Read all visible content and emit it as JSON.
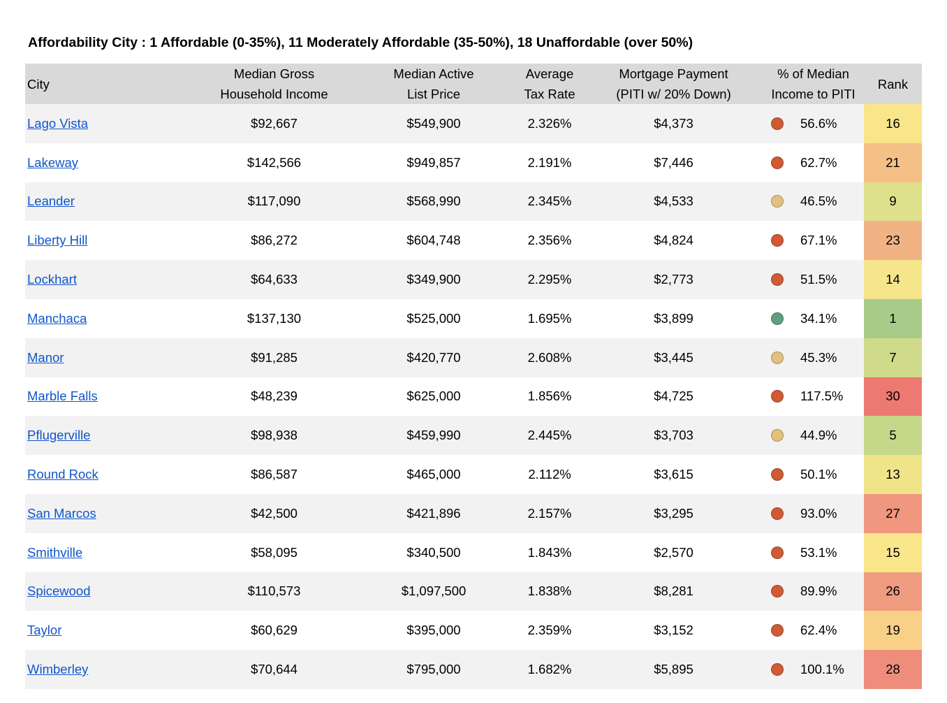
{
  "title": "Affordability City :  1 Affordable  (0-35%),  11 Moderately Affordable (35-50%), 18 Unaffordable (over 50%)",
  "colors": {
    "header_bg": "#d9d9d9",
    "stripe_bg": "#f2f2f2",
    "link": "#1155cc",
    "status": {
      "affordable": "#5f9e80",
      "moderate": "#e3c07e",
      "unaffordable": "#cf5a34"
    }
  },
  "table": {
    "headers": {
      "city": "City",
      "income_1": "Median Gross",
      "income_2": "Household Income",
      "price_1": "Median Active",
      "price_2": "List Price",
      "tax_1": "Average",
      "tax_2": "Tax Rate",
      "mortgage_1": "Mortgage Payment",
      "mortgage_2": "(PITI w/ 20% Down)",
      "pct_1": "% of Median",
      "pct_2": "Income to PITI",
      "rank": "Rank"
    },
    "rows": [
      {
        "city": "Lago Vista",
        "income": "$92,667",
        "price": "$549,900",
        "tax": "2.326%",
        "mortgage": "$4,373",
        "status": "unaffordable",
        "pct": "56.6%",
        "rank": "16",
        "rank_color": "#f9e58a"
      },
      {
        "city": "Lakeway",
        "income": "$142,566",
        "price": "$949,857",
        "tax": "2.191%",
        "mortgage": "$7,446",
        "status": "unaffordable",
        "pct": "62.7%",
        "rank": "21",
        "rank_color": "#f4c086"
      },
      {
        "city": "Leander",
        "income": "$117,090",
        "price": "$568,990",
        "tax": "2.345%",
        "mortgage": "$4,533",
        "status": "moderate",
        "pct": "46.5%",
        "rank": "9",
        "rank_color": "#dfe08b"
      },
      {
        "city": "Liberty Hill",
        "income": "$86,272",
        "price": "$604,748",
        "tax": "2.356%",
        "mortgage": "$4,824",
        "status": "unaffordable",
        "pct": "67.1%",
        "rank": "23",
        "rank_color": "#f2b384"
      },
      {
        "city": "Lockhart",
        "income": "$64,633",
        "price": "$349,900",
        "tax": "2.295%",
        "mortgage": "$2,773",
        "status": "unaffordable",
        "pct": "51.5%",
        "rank": "14",
        "rank_color": "#f5e68c"
      },
      {
        "city": "Manchaca",
        "income": "$137,130",
        "price": "$525,000",
        "tax": "1.695%",
        "mortgage": "$3,899",
        "status": "affordable",
        "pct": "34.1%",
        "rank": "1",
        "rank_color": "#a9cb89"
      },
      {
        "city": "Manor",
        "income": "$91,285",
        "price": "$420,770",
        "tax": "2.608%",
        "mortgage": "$3,445",
        "status": "moderate",
        "pct": "45.3%",
        "rank": "7",
        "rank_color": "#cfdb8b"
      },
      {
        "city": "Marble Falls",
        "income": "$48,239",
        "price": "$625,000",
        "tax": "1.856%",
        "mortgage": "$4,725",
        "status": "unaffordable",
        "pct": "117.5%",
        "rank": "30",
        "rank_color": "#ec7a72"
      },
      {
        "city": "Pflugerville",
        "income": "$98,938",
        "price": "$459,990",
        "tax": "2.445%",
        "mortgage": "$3,703",
        "status": "moderate",
        "pct": "44.9%",
        "rank": "5",
        "rank_color": "#c5d88a"
      },
      {
        "city": "Round Rock",
        "income": "$86,587",
        "price": "$465,000",
        "tax": "2.112%",
        "mortgage": "$3,615",
        "status": "unaffordable",
        "pct": "50.1%",
        "rank": "13",
        "rank_color": "#f0e48b"
      },
      {
        "city": "San Marcos",
        "income": "$42,500",
        "price": "$421,896",
        "tax": "2.157%",
        "mortgage": "$3,295",
        "status": "unaffordable",
        "pct": "93.0%",
        "rank": "27",
        "rank_color": "#f09780"
      },
      {
        "city": "Smithville",
        "income": "$58,095",
        "price": "$340,500",
        "tax": "1.843%",
        "mortgage": "$2,570",
        "status": "unaffordable",
        "pct": "53.1%",
        "rank": "15",
        "rank_color": "#f9e58a"
      },
      {
        "city": "Spicewood",
        "income": "$110,573",
        "price": "$1,097,500",
        "tax": "1.838%",
        "mortgage": "$8,281",
        "status": "unaffordable",
        "pct": "89.9%",
        "rank": "26",
        "rank_color": "#f09c80"
      },
      {
        "city": "Taylor",
        "income": "$60,629",
        "price": "$395,000",
        "tax": "2.359%",
        "mortgage": "$3,152",
        "status": "unaffordable",
        "pct": "62.4%",
        "rank": "19",
        "rank_color": "#f8d088"
      },
      {
        "city": "Wimberley",
        "income": "$70,644",
        "price": "$795,000",
        "tax": "1.682%",
        "mortgage": "$5,895",
        "status": "unaffordable",
        "pct": "100.1%",
        "rank": "28",
        "rank_color": "#ee8d7b"
      }
    ]
  }
}
